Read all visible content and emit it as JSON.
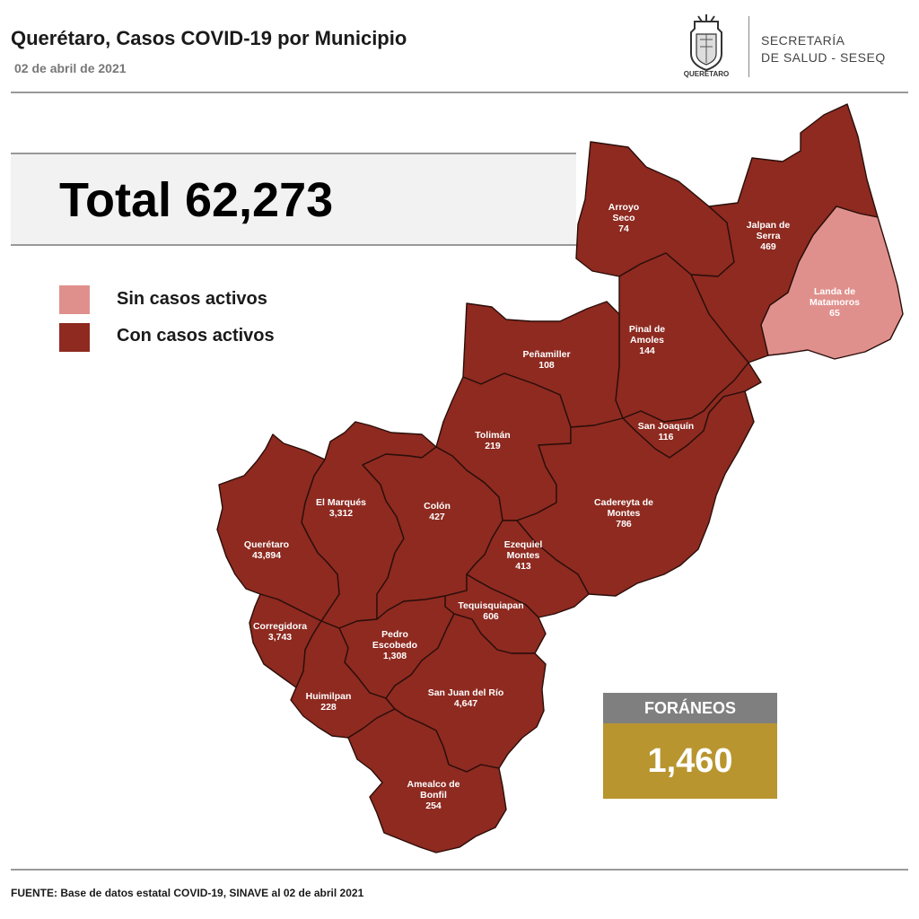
{
  "header": {
    "title": "Querétaro, Casos COVID-19 por Municipio",
    "date": "02 de abril de 2021",
    "logo_text": "QUERÉTARO",
    "secretaria_line1": "SECRETARÍA",
    "secretaria_line2": "DE SALUD - SESEQ"
  },
  "total_label": "Total 62,273",
  "legend": [
    {
      "label": "Sin casos activos",
      "color": "#e0908c"
    },
    {
      "label": "Con casos activos",
      "color": "#8e2a20"
    }
  ],
  "colors": {
    "active": "#8e2a20",
    "inactive": "#e0908c",
    "border": "#2a0e0a"
  },
  "municipios": {
    "arroyo_seco": {
      "name_1": "Arroyo",
      "name_2": "Seco",
      "cases": "74",
      "status": "active"
    },
    "jalpan": {
      "name_1": "Jalpan de",
      "name_2": "Serra",
      "cases": "469",
      "status": "active"
    },
    "landa": {
      "name_1": "Landa de",
      "name_2": "Matamoros",
      "cases": "65",
      "status": "inactive"
    },
    "pinal": {
      "name_1": "Pinal de",
      "name_2": "Amoles",
      "cases": "144",
      "status": "active"
    },
    "penamiller": {
      "name_1": "Peñamiller",
      "cases": "108",
      "status": "active"
    },
    "san_joaquin": {
      "name_1": "San Joaquín",
      "cases": "116",
      "status": "active"
    },
    "toliman": {
      "name_1": "Tolimán",
      "cases": "219",
      "status": "active"
    },
    "cadereyta": {
      "name_1": "Cadereyta de",
      "name_2": "Montes",
      "cases": "786",
      "status": "active"
    },
    "el_marques": {
      "name_1": "El  Marqués",
      "cases": "3,312",
      "status": "active"
    },
    "colon": {
      "name_1": "Colón",
      "cases": "427",
      "status": "active"
    },
    "queretaro": {
      "name_1": "Querétaro",
      "cases": "43,894",
      "status": "active"
    },
    "ezequiel": {
      "name_1": "Ezequiel",
      "name_2": "Montes",
      "cases": "413",
      "status": "active"
    },
    "tequisquiapan": {
      "name_1": "Tequisquiapan",
      "cases": "606",
      "status": "active"
    },
    "corregidora": {
      "name_1": "Corregidora",
      "cases": "3,743",
      "status": "active"
    },
    "pedro_escobedo": {
      "name_1": "Pedro",
      "name_2": "Escobedo",
      "cases": "1,308",
      "status": "active"
    },
    "huimilpan": {
      "name_1": "Huimilpan",
      "cases": "228",
      "status": "active"
    },
    "san_juan": {
      "name_1": "San Juan del Río",
      "cases": "4,647",
      "status": "active"
    },
    "amealco": {
      "name_1": "Amealco de",
      "name_2": "Bonfil",
      "cases": "254",
      "status": "active"
    }
  },
  "foraneos": {
    "label": "FORÁNEOS",
    "value": "1,460"
  },
  "footer": "FUENTE: Base de datos estatal COVID-19, SINAVE al 02 de abril 2021"
}
